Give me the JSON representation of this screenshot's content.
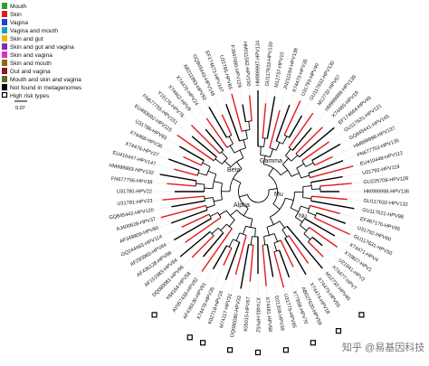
{
  "legend": {
    "items": [
      "Mouth",
      "Skin",
      "Vagina",
      "Vagina and mouth",
      "Skin and gut",
      "Skin and gut and vagina",
      "Skin and vagina",
      "Skin and mouth",
      "Gut and vagina",
      "Mouth and skin and vagina",
      "Not found in metagenomes",
      "High risk types"
    ]
  },
  "scale": {
    "label": "0.07"
  },
  "clades": [
    "Beta",
    "Gamma",
    "Alpha",
    "Mu",
    "Nu"
  ],
  "watermark": "知乎 @易基因科技",
  "leaves": [
    "HM999997-HPV134",
    "GU117633-HPV130",
    "M12737-HPV10",
    "JN211194-HPV138",
    "X74473-HPV35",
    "U31793-HPV40",
    "GU117632-HPV130",
    "M12732-HPV57",
    "HM999999-HPV139",
    "X74465-HPV19",
    "EF174664-HPV49",
    "GU117631-HPV121",
    "GQ845441-HPV145",
    "HM999998-HPV137",
    "FN677753-HPV135",
    "EU410448-HPV112",
    "U31792-HPV119",
    "GU225708-HPV128",
    "HM999998-HPV136",
    "GU117632-HPV132",
    "GU117621-HPV98",
    "EF467176-HPV95",
    "U31792-HPV60",
    "GU117631-HPV50",
    "X74471-HPV4",
    "X70827-HPV1",
    "U21941-HPV2",
    "X74477-HPV7",
    "M12732-HPV45",
    "X74479-HPV55",
    "X74474-HPV18",
    "AB027020-HPV59",
    "X77858-HPV70",
    "U31779-HPV85",
    "D21208-HPV39",
    "X74481-HPV68",
    "X74483-HPV52",
    "X05015-HPV67",
    "DQ080080-HPV33",
    "M74117-HPV31",
    "K02718-HPV16",
    "X74478-HPV35",
    "AF436130-HPV91",
    "AY057438-HPV82",
    "X94164-HPV58",
    "DQ080081-HPV96",
    "AF151983-HPV94",
    "AF436128-HPV86",
    "AF293960-HPV84",
    "GQ244463-HPV114",
    "AF349909-HPV80",
    "AJ400628-HPV37",
    "GQ845442-HPV120",
    "U31781-HPV23",
    "U31780-HPV22",
    "FN677756-HPV38",
    "HM999993-HPV132",
    "EU410447-HPV147",
    "X74476-HPV27",
    "X74468-HPV36",
    "U31786-HPV93",
    "EU493092-HPV115",
    "FN677755-HPV151",
    "Y15176-HPV76",
    "X74462-HPV9",
    "X74470-HPV24",
    "AB211993-HPV92",
    "GQ845443-HPV148",
    "EF174673-HPV107",
    "U31785-HPV65",
    "FJ947080-HPV129",
    "HM011562-HPV150"
  ]
}
